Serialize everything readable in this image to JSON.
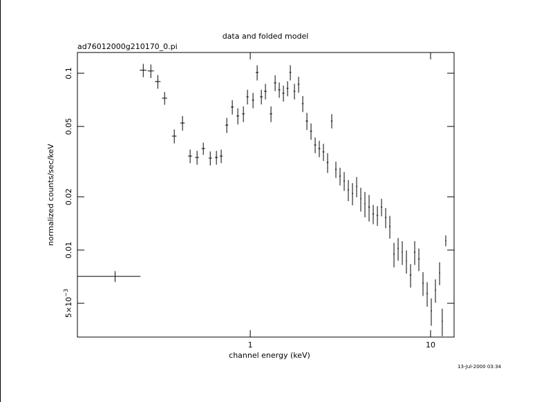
{
  "chart_data": {
    "type": "errorbar",
    "title": "data and folded model",
    "subtitle": "ad76012000g210170_0.pi",
    "x_label": "channel energy (keV)",
    "y_label": "normalized counts/sec/keV",
    "timestamp": "13-Jul-2000 03:34",
    "x_scale": "log",
    "y_scale": "log",
    "color": "#000000",
    "xlim": [
      0.11,
      13.5
    ],
    "ylim": [
      0.00322,
      0.131
    ],
    "xticks": [
      1,
      10
    ],
    "yticks": [
      0.1,
      0.05,
      0.02,
      0.01,
      {
        "value": 0.005,
        "label": "5×10−3"
      }
    ],
    "x": [
      0.178,
      0.255,
      0.281,
      0.307,
      0.335,
      0.379,
      0.421,
      0.464,
      0.507,
      0.549,
      0.6,
      0.649,
      0.69,
      0.741,
      0.795,
      0.853,
      0.916,
      0.965,
      1.036,
      1.092,
      1.152,
      1.214,
      1.303,
      1.374,
      1.448,
      1.527,
      1.61,
      1.668,
      1.758,
      1.854,
      1.955,
      2.061,
      2.173,
      2.291,
      2.415,
      2.546,
      2.685,
      2.831,
      2.985,
      3.147,
      3.318,
      3.499,
      3.689,
      3.89,
      4.101,
      4.324,
      4.56,
      4.808,
      5.07,
      5.346,
      5.636,
      5.943,
      6.266,
      6.607,
      6.966,
      7.345,
      7.745,
      8.166,
      8.61,
      9.078,
      9.572,
      10.09,
      10.64,
      11.22,
      11.61,
      12.14
    ],
    "xerr": [
      0.068,
      0.011,
      0.011,
      0.011,
      0.011,
      0.011,
      0.012,
      0.012,
      0.012,
      0.012,
      0.012,
      0.012,
      0.012,
      0.014,
      0.014,
      0.014,
      0.014,
      0.014,
      0.014,
      0.02,
      0.02,
      0.02,
      0.02,
      0.02,
      0.02,
      0.02,
      0.02,
      0.02,
      0.02,
      0.02,
      0.02,
      0.03,
      0.03,
      0.03,
      0.03,
      0.03,
      0.03,
      0.03,
      0.03,
      0.03,
      0.03,
      0.03,
      0.03,
      0.03,
      0.03,
      0.03,
      0.05,
      0.05,
      0.05,
      0.05,
      0.05,
      0.05,
      0.05,
      0.05,
      0.05,
      0.05,
      0.08,
      0.08,
      0.08,
      0.08,
      0.08,
      0.08,
      0.08,
      0.08,
      0.08,
      0.08
    ],
    "values": [
      0.0071,
      0.104,
      0.103,
      0.0897,
      0.0723,
      0.0441,
      0.0523,
      0.034,
      0.0334,
      0.0375,
      0.0331,
      0.0334,
      0.034,
      0.0509,
      0.0644,
      0.0573,
      0.0589,
      0.0736,
      0.0704,
      0.101,
      0.0736,
      0.0791,
      0.0589,
      0.0882,
      0.0806,
      0.0771,
      0.0821,
      0.101,
      0.0791,
      0.0866,
      0.0673,
      0.0537,
      0.047,
      0.0393,
      0.0375,
      0.0359,
      0.0313,
      0.0537,
      0.0286,
      0.0262,
      0.0246,
      0.0219,
      0.0209,
      0.0229,
      0.0195,
      0.0183,
      0.0175,
      0.016,
      0.0157,
      0.0175,
      0.0153,
      0.0136,
      0.00948,
      0.0102,
      0.00973,
      0.00866,
      0.00723,
      0.00973,
      0.0089,
      0.0065,
      0.00568,
      0.00453,
      0.00593,
      0.00743,
      0.00396,
      0.0113
    ],
    "yerr": [
      0.0005,
      0.009,
      0.009,
      0.008,
      0.006,
      0.004,
      0.005,
      0.003,
      0.003,
      0.003,
      0.003,
      0.003,
      0.003,
      0.005,
      0.006,
      0.006,
      0.006,
      0.007,
      0.007,
      0.01,
      0.007,
      0.008,
      0.006,
      0.009,
      0.008,
      0.008,
      0.008,
      0.01,
      0.008,
      0.009,
      0.007,
      0.006,
      0.005,
      0.004,
      0.004,
      0.004,
      0.004,
      0.005,
      0.003,
      0.003,
      0.003,
      0.003,
      0.003,
      0.003,
      0.003,
      0.003,
      0.003,
      0.002,
      0.002,
      0.002,
      0.002,
      0.002,
      0.0015,
      0.0015,
      0.0015,
      0.0013,
      0.0011,
      0.0015,
      0.0013,
      0.001,
      0.0009,
      0.0008,
      0.0009,
      0.0011,
      0.0007,
      0.0008
    ]
  }
}
